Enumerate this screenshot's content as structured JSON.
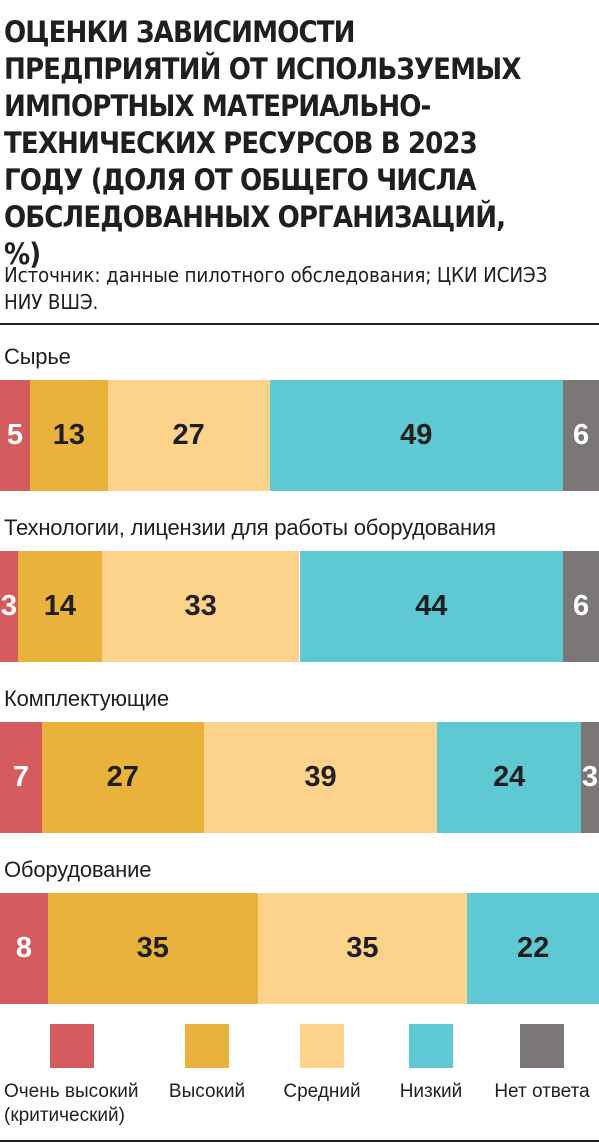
{
  "title": "Оценки зависимости предприятий от используемых импортных материально-технических ресурсов в 2023 году (доля от общего числа обследованных организаций, %)",
  "source": "Источник: данные пилотного обследования; ЦКИ ИСИЭЗ НИУ ВШЭ.",
  "chart_data": {
    "type": "bar",
    "orientation": "horizontal",
    "stacked": true,
    "unit": "%",
    "categories": [
      "Сырье",
      "Технологии, лицензии для работы оборудования",
      "Комплектующие",
      "Оборудование"
    ],
    "series": [
      {
        "name": "Очень высокий (критический)",
        "color": "#d45b5e",
        "label_color": "#ffffff",
        "values": [
          5,
          3,
          7,
          8
        ]
      },
      {
        "name": "Высокий",
        "color": "#e8b23c",
        "label_color": "#1f1f1f",
        "values": [
          13,
          14,
          27,
          35
        ]
      },
      {
        "name": "Средний",
        "color": "#fdd28b",
        "label_color": "#1f1f1f",
        "values": [
          27,
          33,
          39,
          35
        ]
      },
      {
        "name": "Низкий",
        "color": "#5ec8d3",
        "label_color": "#1f1f1f",
        "values": [
          49,
          44,
          24,
          22
        ]
      },
      {
        "name": "Нет ответа",
        "color": "#7a7776",
        "label_color": "#ffffff",
        "values": [
          6,
          6,
          3,
          null
        ]
      }
    ],
    "legend_position": "bottom"
  }
}
